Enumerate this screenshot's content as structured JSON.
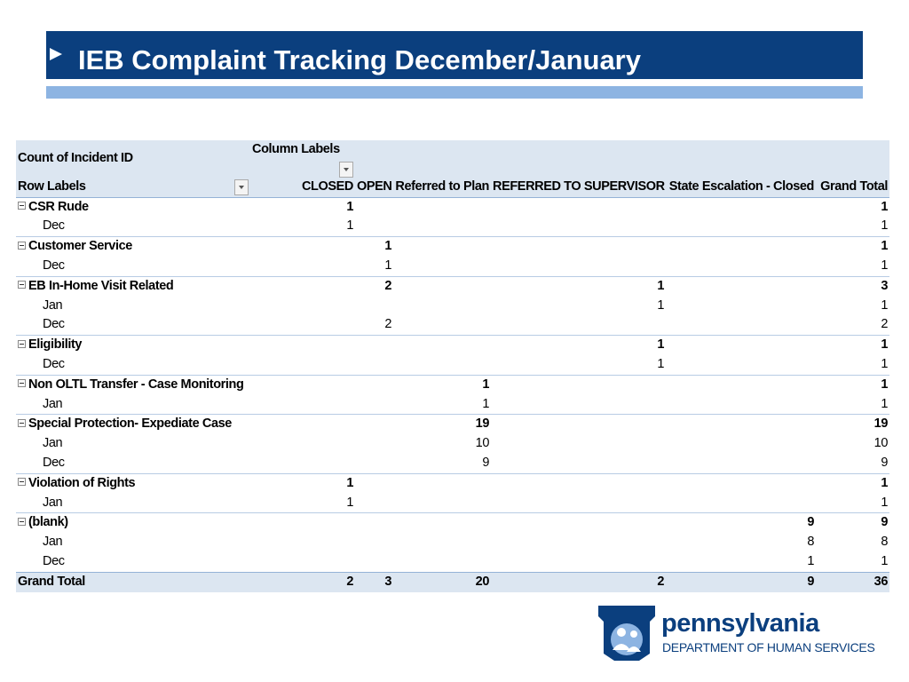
{
  "header": {
    "title": "IEB Complaint Tracking December/January"
  },
  "table": {
    "corner": "Count of Incident ID",
    "column_labels": "Column Labels",
    "row_labels": "Row Labels",
    "columns": [
      "CLOSED",
      "OPEN",
      "Referred to Plan",
      "REFERRED TO SUPERVISOR",
      "State Escalation - Closed",
      "Grand Total"
    ],
    "rows": [
      {
        "label": "CSR Rude",
        "group": true,
        "cells": [
          1,
          null,
          null,
          null,
          null,
          1
        ]
      },
      {
        "label": "Dec",
        "group": false,
        "cells": [
          1,
          null,
          null,
          null,
          null,
          1
        ]
      },
      {
        "label": "Customer Service",
        "group": true,
        "cells": [
          null,
          1,
          null,
          null,
          null,
          1
        ]
      },
      {
        "label": "Dec",
        "group": false,
        "cells": [
          null,
          1,
          null,
          null,
          null,
          1
        ]
      },
      {
        "label": "EB In-Home Visit Related",
        "group": true,
        "cells": [
          null,
          2,
          null,
          1,
          null,
          3
        ]
      },
      {
        "label": "Jan",
        "group": false,
        "cells": [
          null,
          null,
          null,
          1,
          null,
          1
        ]
      },
      {
        "label": "Dec",
        "group": false,
        "cells": [
          null,
          2,
          null,
          null,
          null,
          2
        ]
      },
      {
        "label": "Eligibility",
        "group": true,
        "cells": [
          null,
          null,
          null,
          1,
          null,
          1
        ]
      },
      {
        "label": "Dec",
        "group": false,
        "cells": [
          null,
          null,
          null,
          1,
          null,
          1
        ]
      },
      {
        "label": "Non OLTL Transfer - Case Monitoring",
        "group": true,
        "cells": [
          null,
          null,
          1,
          null,
          null,
          1
        ]
      },
      {
        "label": "Jan",
        "group": false,
        "cells": [
          null,
          null,
          1,
          null,
          null,
          1
        ]
      },
      {
        "label": "Special Protection- Expediate Case",
        "group": true,
        "cells": [
          null,
          null,
          19,
          null,
          null,
          19
        ]
      },
      {
        "label": "Jan",
        "group": false,
        "cells": [
          null,
          null,
          10,
          null,
          null,
          10
        ]
      },
      {
        "label": "Dec",
        "group": false,
        "cells": [
          null,
          null,
          9,
          null,
          null,
          9
        ]
      },
      {
        "label": "Violation of Rights",
        "group": true,
        "cells": [
          1,
          null,
          null,
          null,
          null,
          1
        ]
      },
      {
        "label": "Jan",
        "group": false,
        "cells": [
          1,
          null,
          null,
          null,
          null,
          1
        ]
      },
      {
        "label": "(blank)",
        "group": true,
        "cells": [
          null,
          null,
          null,
          null,
          9,
          9
        ]
      },
      {
        "label": "Jan",
        "group": false,
        "cells": [
          null,
          null,
          null,
          null,
          8,
          8
        ]
      },
      {
        "label": "Dec",
        "group": false,
        "cells": [
          null,
          null,
          null,
          null,
          1,
          1
        ]
      }
    ],
    "total": {
      "label": "Grand Total",
      "cells": [
        2,
        3,
        20,
        2,
        9,
        36
      ]
    }
  },
  "logo": {
    "name": "pennsylvania",
    "department": "DEPARTMENT OF HUMAN SERVICES"
  }
}
